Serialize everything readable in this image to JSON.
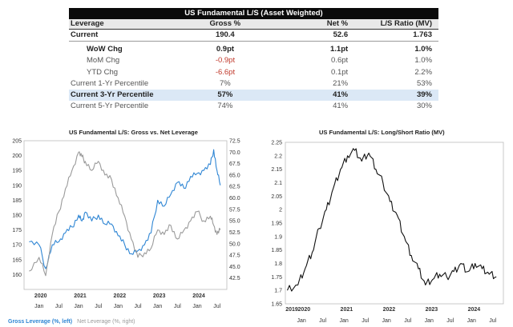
{
  "table": {
    "title": "US Fundamental L/S (Asset Weighted)",
    "headers": [
      "Leverage",
      "Gross %",
      "Net %",
      "L/S Ratio (MV)"
    ],
    "rows": [
      {
        "label": "Current",
        "gross": "190.4",
        "net": "52.6",
        "ratio": "1.763"
      },
      {
        "label": "WoW Chg",
        "gross": "0.9pt",
        "net": "1.1pt",
        "ratio": "1.0%"
      },
      {
        "label": "MoM Chg",
        "gross": "-0.9pt",
        "net": "0.6pt",
        "ratio": "1.0%"
      },
      {
        "label": "YTD Chg",
        "gross": "-6.6pt",
        "net": "0.1pt",
        "ratio": "2.2%"
      },
      {
        "label": "Current 1-Yr Percentile",
        "gross": "7%",
        "net": "21%",
        "ratio": "53%"
      },
      {
        "label": "Current 3-Yr Percentile",
        "gross": "57%",
        "net": "41%",
        "ratio": "39%"
      },
      {
        "label": "Current 5-Yr Percentile",
        "gross": "74%",
        "net": "41%",
        "ratio": "30%"
      }
    ]
  },
  "chart_data": [
    {
      "type": "line",
      "title": "US Fundamental L/S: Gross vs. Net Leverage",
      "ylim_left": [
        155,
        205
      ],
      "ylim_right": [
        40,
        72.5
      ],
      "yticks_left": [
        "205",
        "200",
        "195",
        "190",
        "185",
        "180",
        "175",
        "170",
        "165",
        "160"
      ],
      "yticks_right": [
        "72.5",
        "70.0",
        "67.5",
        "65.0",
        "62.5",
        "60.0",
        "57.5",
        "55.0",
        "52.5",
        "50.0",
        "47.5",
        "45.0",
        "42.5"
      ],
      "year_labels": [
        "2020",
        "2021",
        "2022",
        "2023",
        "2024"
      ],
      "month_labels": [
        "Jan",
        "Jul",
        "Jan",
        "Jul",
        "Jan",
        "Jul",
        "Jan",
        "Jul",
        "Jan",
        "Jul"
      ],
      "x": [
        "2019-10",
        "2020-01",
        "2020-03",
        "2020-05",
        "2020-07",
        "2020-09",
        "2020-11",
        "2021-01",
        "2021-02",
        "2021-03",
        "2021-05",
        "2021-07",
        "2021-09",
        "2021-11",
        "2022-01",
        "2022-03",
        "2022-05",
        "2022-07",
        "2022-09",
        "2022-11",
        "2023-01",
        "2023-03",
        "2023-05",
        "2023-07",
        "2023-09",
        "2023-11",
        "2024-01",
        "2024-03",
        "2024-05",
        "2024-06",
        "2024-07",
        "2024-08"
      ],
      "series": [
        {
          "name": "Gross Leverage (%, left)",
          "axis": "left",
          "color": "#2f86d4",
          "values": [
            171,
            170,
            162,
            170,
            171,
            174,
            176,
            180,
            178,
            181,
            178,
            180,
            177,
            177,
            173,
            170,
            167,
            168,
            170,
            174,
            185,
            183,
            187,
            191,
            189,
            193,
            194,
            195,
            197,
            202,
            195,
            190
          ]
        },
        {
          "name": "Net Leverage (%, right)",
          "axis": "right",
          "color": "#9a9a9a",
          "values": [
            44,
            47,
            43,
            52,
            57,
            62,
            66,
            70,
            69,
            68,
            66,
            68,
            65,
            64,
            60,
            56,
            51,
            47,
            48,
            49,
            53,
            52,
            54,
            51,
            53,
            55,
            57,
            55,
            56,
            54,
            52,
            53
          ]
        }
      ],
      "legend_position": "bottom-left"
    },
    {
      "type": "line",
      "title": "US Fundamental L/S: Long/Short Ratio (MV)",
      "ylim": [
        1.65,
        2.25
      ],
      "yticks": [
        "2.25",
        "2.2",
        "2.15",
        "2.1",
        "2.05",
        "2",
        "1.95",
        "1.9",
        "1.85",
        "1.8",
        "1.75",
        "1.7",
        "1.65"
      ],
      "year_labels": [
        "2019",
        "2020",
        "2021",
        "2022",
        "2023",
        "2024"
      ],
      "month_labels": [
        "Jan",
        "Jul",
        "Jan",
        "Jul",
        "Jan",
        "Jul",
        "Jan",
        "Jul",
        "Jan",
        "Jul"
      ],
      "x": [
        "2019-09",
        "2019-12",
        "2020-02",
        "2020-04",
        "2020-06",
        "2020-08",
        "2020-10",
        "2020-12",
        "2021-02",
        "2021-04",
        "2021-06",
        "2021-08",
        "2021-10",
        "2021-12",
        "2022-02",
        "2022-04",
        "2022-06",
        "2022-08",
        "2022-10",
        "2022-12",
        "2023-02",
        "2023-04",
        "2023-06",
        "2023-08",
        "2023-10",
        "2023-12",
        "2024-02",
        "2024-04",
        "2024-06",
        "2024-08"
      ],
      "series": [
        {
          "name": "",
          "color": "#111111",
          "values": [
            1.7,
            1.72,
            1.78,
            1.84,
            1.93,
            2.0,
            2.08,
            2.15,
            2.2,
            2.22,
            2.18,
            2.21,
            2.15,
            2.1,
            2.03,
            1.98,
            1.9,
            1.83,
            1.78,
            1.72,
            1.74,
            1.76,
            1.75,
            1.77,
            1.8,
            1.77,
            1.8,
            1.78,
            1.76,
            1.75
          ]
        }
      ]
    }
  ]
}
